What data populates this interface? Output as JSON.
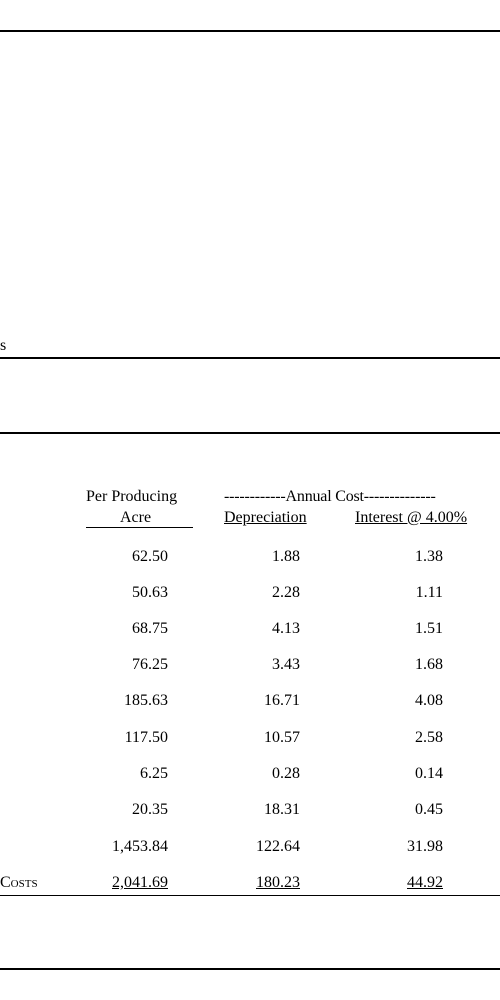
{
  "fragment_label": "s",
  "headers": {
    "per_producing_line1": "Per Producing",
    "per_producing_line2": "Acre",
    "annual_cost": "------------Annual Cost--------------",
    "depreciation": "Depreciation",
    "interest": "Interest @ 4.00%"
  },
  "rows": [
    {
      "acre": "62.50",
      "depreciation": "1.88",
      "interest": "1.38"
    },
    {
      "acre": "50.63",
      "depreciation": "2.28",
      "interest": "1.11"
    },
    {
      "acre": "68.75",
      "depreciation": "4.13",
      "interest": "1.51"
    },
    {
      "acre": "76.25",
      "depreciation": "3.43",
      "interest": "1.68"
    },
    {
      "acre": "185.63",
      "depreciation": "16.71",
      "interest": "4.08"
    },
    {
      "acre": "117.50",
      "depreciation": "10.57",
      "interest": "2.58"
    },
    {
      "acre": "6.25",
      "depreciation": "0.28",
      "interest": "0.14"
    },
    {
      "acre": "20.35",
      "depreciation": "18.31",
      "interest": "0.45"
    },
    {
      "acre": "1,453.84",
      "depreciation": "122.64",
      "interest": "31.98"
    }
  ],
  "total": {
    "label": "Costs",
    "acre": "2,041.69",
    "depreciation": "180.23",
    "interest": "44.92"
  }
}
